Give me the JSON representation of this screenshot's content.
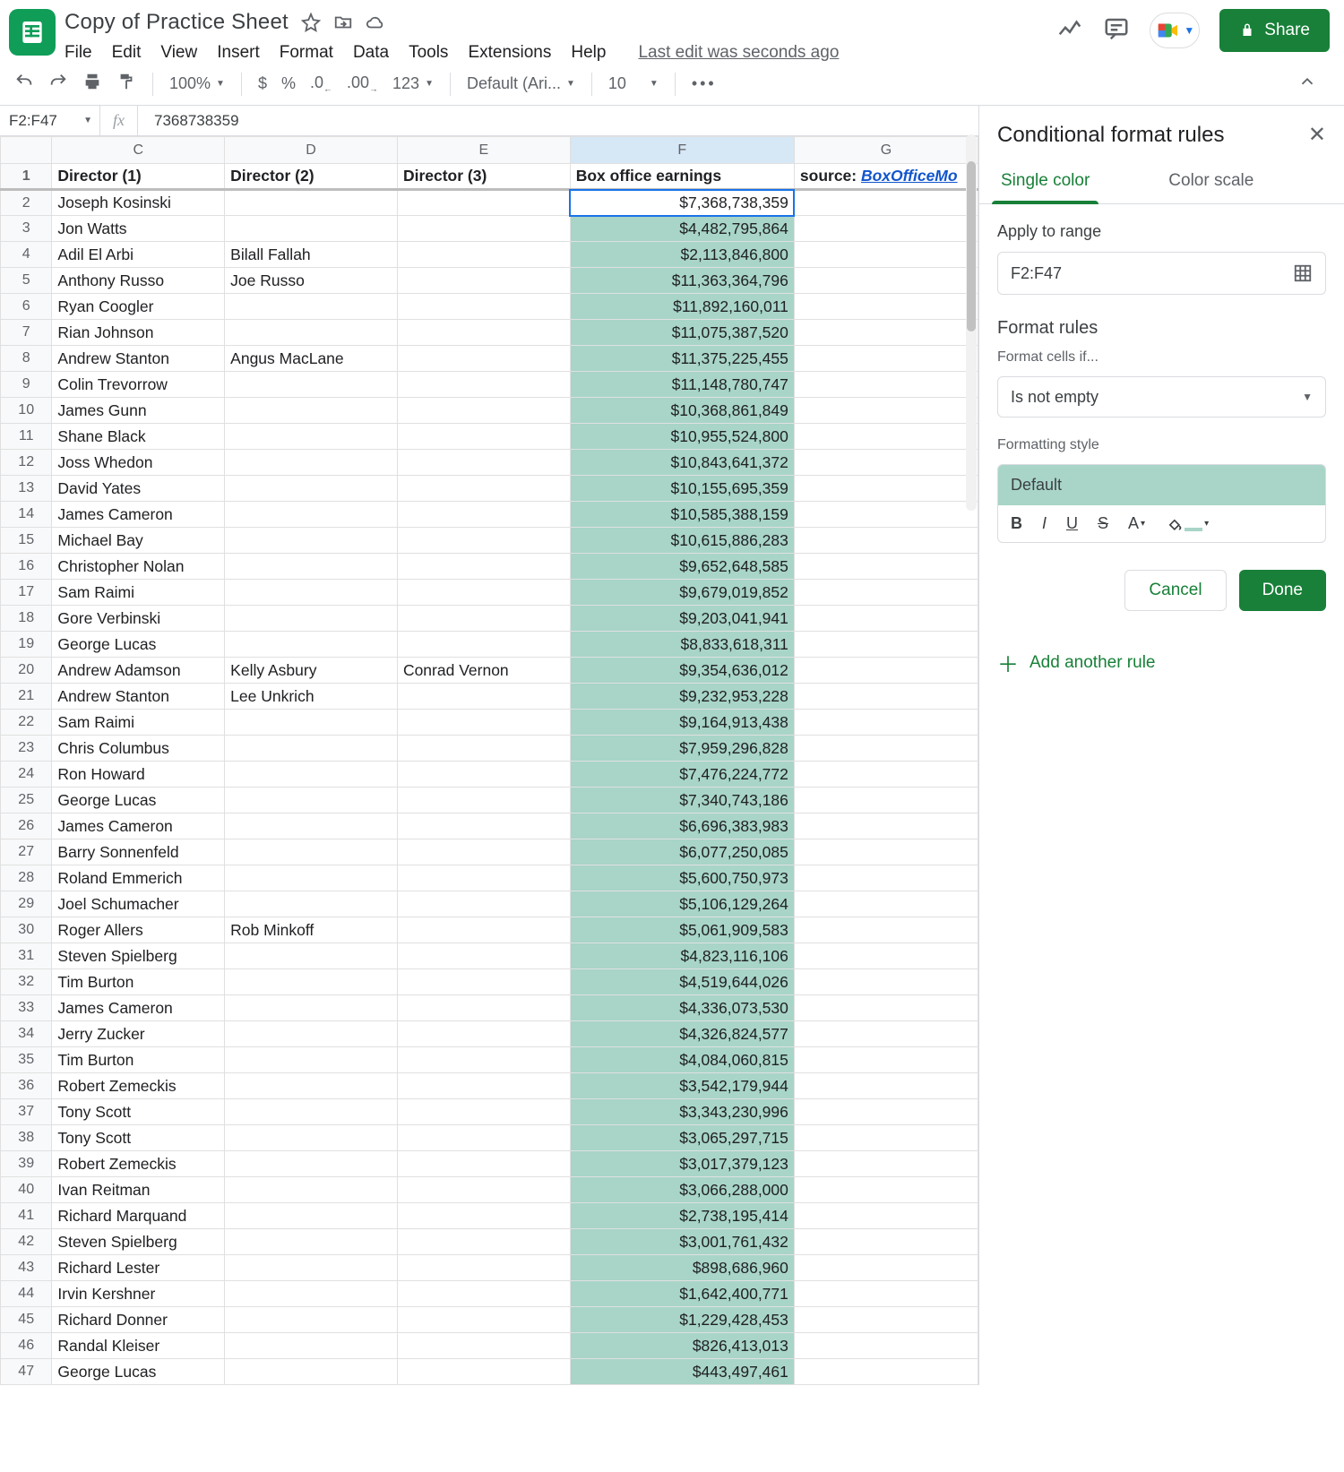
{
  "doc": {
    "title": "Copy of Practice Sheet",
    "last_edit": "Last edit was seconds ago",
    "share_label": "Share"
  },
  "menus": [
    "File",
    "Edit",
    "View",
    "Insert",
    "Format",
    "Data",
    "Tools",
    "Extensions",
    "Help"
  ],
  "toolbar": {
    "zoom": "100%",
    "number_format": "123",
    "font": "Default (Ari...",
    "font_size": "10"
  },
  "namebox": {
    "range": "F2:F47",
    "formula_value": "7368738359"
  },
  "columns": {
    "letters": [
      "C",
      "D",
      "E",
      "F",
      "G"
    ],
    "selected": "F"
  },
  "headers": {
    "C": "Director (1)",
    "D": "Director (2)",
    "E": "Director (3)",
    "F": "Box office earnings",
    "G_label": "source: ",
    "G_link": "BoxOfficeMo"
  },
  "conditional_format_highlight": "#a8d5c8",
  "rows": [
    {
      "n": 2,
      "C": "Joseph Kosinski",
      "D": "",
      "E": "",
      "F": "$7,368,738,359",
      "active": true
    },
    {
      "n": 3,
      "C": "Jon Watts",
      "D": "",
      "E": "",
      "F": "$4,482,795,864"
    },
    {
      "n": 4,
      "C": "Adil El Arbi",
      "D": "Bilall Fallah",
      "E": "",
      "F": "$2,113,846,800"
    },
    {
      "n": 5,
      "C": "Anthony Russo",
      "D": "Joe Russo",
      "E": "",
      "F": "$11,363,364,796"
    },
    {
      "n": 6,
      "C": "Ryan Coogler",
      "D": "",
      "E": "",
      "F": "$11,892,160,011"
    },
    {
      "n": 7,
      "C": "Rian Johnson",
      "D": "",
      "E": "",
      "F": "$11,075,387,520"
    },
    {
      "n": 8,
      "C": "Andrew Stanton",
      "D": "Angus MacLane",
      "E": "",
      "F": "$11,375,225,455"
    },
    {
      "n": 9,
      "C": "Colin Trevorrow",
      "D": "",
      "E": "",
      "F": "$11,148,780,747"
    },
    {
      "n": 10,
      "C": "James Gunn",
      "D": "",
      "E": "",
      "F": "$10,368,861,849"
    },
    {
      "n": 11,
      "C": "Shane Black",
      "D": "",
      "E": "",
      "F": "$10,955,524,800"
    },
    {
      "n": 12,
      "C": "Joss Whedon",
      "D": "",
      "E": "",
      "F": "$10,843,641,372"
    },
    {
      "n": 13,
      "C": "David Yates",
      "D": "",
      "E": "",
      "F": "$10,155,695,359"
    },
    {
      "n": 14,
      "C": "James Cameron",
      "D": "",
      "E": "",
      "F": "$10,585,388,159"
    },
    {
      "n": 15,
      "C": "Michael Bay",
      "D": "",
      "E": "",
      "F": "$10,615,886,283"
    },
    {
      "n": 16,
      "C": "Christopher Nolan",
      "D": "",
      "E": "",
      "F": "$9,652,648,585"
    },
    {
      "n": 17,
      "C": "Sam Raimi",
      "D": "",
      "E": "",
      "F": "$9,679,019,852"
    },
    {
      "n": 18,
      "C": "Gore Verbinski",
      "D": "",
      "E": "",
      "F": "$9,203,041,941"
    },
    {
      "n": 19,
      "C": "George Lucas",
      "D": "",
      "E": "",
      "F": "$8,833,618,311"
    },
    {
      "n": 20,
      "C": "Andrew Adamson",
      "D": "Kelly Asbury",
      "E": "Conrad Vernon",
      "F": "$9,354,636,012"
    },
    {
      "n": 21,
      "C": "Andrew Stanton",
      "D": "Lee Unkrich",
      "E": "",
      "F": "$9,232,953,228"
    },
    {
      "n": 22,
      "C": "Sam Raimi",
      "D": "",
      "E": "",
      "F": "$9,164,913,438"
    },
    {
      "n": 23,
      "C": "Chris Columbus",
      "D": "",
      "E": "",
      "F": "$7,959,296,828"
    },
    {
      "n": 24,
      "C": "Ron Howard",
      "D": "",
      "E": "",
      "F": "$7,476,224,772"
    },
    {
      "n": 25,
      "C": "George Lucas",
      "D": "",
      "E": "",
      "F": "$7,340,743,186"
    },
    {
      "n": 26,
      "C": "James Cameron",
      "D": "",
      "E": "",
      "F": "$6,696,383,983"
    },
    {
      "n": 27,
      "C": "Barry Sonnenfeld",
      "D": "",
      "E": "",
      "F": "$6,077,250,085"
    },
    {
      "n": 28,
      "C": "Roland Emmerich",
      "D": "",
      "E": "",
      "F": "$5,600,750,973"
    },
    {
      "n": 29,
      "C": "Joel Schumacher",
      "D": "",
      "E": "",
      "F": "$5,106,129,264"
    },
    {
      "n": 30,
      "C": "Roger Allers",
      "D": "Rob Minkoff",
      "E": "",
      "F": "$5,061,909,583"
    },
    {
      "n": 31,
      "C": "Steven Spielberg",
      "D": "",
      "E": "",
      "F": "$4,823,116,106"
    },
    {
      "n": 32,
      "C": "Tim Burton",
      "D": "",
      "E": "",
      "F": "$4,519,644,026"
    },
    {
      "n": 33,
      "C": "James Cameron",
      "D": "",
      "E": "",
      "F": "$4,336,073,530"
    },
    {
      "n": 34,
      "C": "Jerry Zucker",
      "D": "",
      "E": "",
      "F": "$4,326,824,577"
    },
    {
      "n": 35,
      "C": "Tim Burton",
      "D": "",
      "E": "",
      "F": "$4,084,060,815"
    },
    {
      "n": 36,
      "C": "Robert Zemeckis",
      "D": "",
      "E": "",
      "F": "$3,542,179,944"
    },
    {
      "n": 37,
      "C": "Tony Scott",
      "D": "",
      "E": "",
      "F": "$3,343,230,996"
    },
    {
      "n": 38,
      "C": "Tony Scott",
      "D": "",
      "E": "",
      "F": "$3,065,297,715"
    },
    {
      "n": 39,
      "C": "Robert Zemeckis",
      "D": "",
      "E": "",
      "F": "$3,017,379,123"
    },
    {
      "n": 40,
      "C": "Ivan Reitman",
      "D": "",
      "E": "",
      "F": "$3,066,288,000"
    },
    {
      "n": 41,
      "C": "Richard Marquand",
      "D": "",
      "E": "",
      "F": "$2,738,195,414"
    },
    {
      "n": 42,
      "C": "Steven Spielberg",
      "D": "",
      "E": "",
      "F": "$3,001,761,432"
    },
    {
      "n": 43,
      "C": "Richard Lester",
      "D": "",
      "E": "",
      "F": "$898,686,960"
    },
    {
      "n": 44,
      "C": "Irvin Kershner",
      "D": "",
      "E": "",
      "F": "$1,642,400,771"
    },
    {
      "n": 45,
      "C": "Richard Donner",
      "D": "",
      "E": "",
      "F": "$1,229,428,453"
    },
    {
      "n": 46,
      "C": "Randal Kleiser",
      "D": "",
      "E": "",
      "F": "$826,413,013"
    },
    {
      "n": 47,
      "C": "George Lucas",
      "D": "",
      "E": "",
      "F": "$443,497,461"
    }
  ],
  "sidepanel": {
    "title": "Conditional format rules",
    "tabs": {
      "single": "Single color",
      "scale": "Color scale"
    },
    "apply_label": "Apply to range",
    "range_value": "F2:F47",
    "rules_title": "Format rules",
    "format_if_label": "Format cells if...",
    "condition": "Is not empty",
    "style_label": "Formatting style",
    "style_name": "Default",
    "cancel": "Cancel",
    "done": "Done",
    "add_rule": "Add another rule"
  }
}
